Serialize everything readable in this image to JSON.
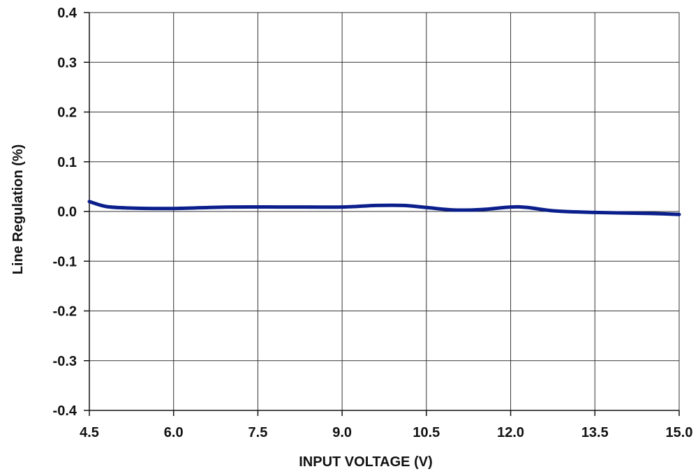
{
  "chart_data": {
    "type": "line",
    "xlabel": "INPUT VOLTAGE (V)",
    "ylabel": "Line Regulation (%)",
    "xlim": [
      4.5,
      15.0
    ],
    "ylim": [
      -0.4,
      0.4
    ],
    "x_ticks": [
      "4.5",
      "6.0",
      "7.5",
      "9.0",
      "10.5",
      "12.0",
      "13.5",
      "15.0"
    ],
    "y_ticks": [
      "0.4",
      "0.3",
      "0.2",
      "0.1",
      "0.0",
      "-0.1",
      "-0.2",
      "-0.3",
      "-0.4"
    ],
    "grid": true,
    "series": [
      {
        "color": "#0b1f8c",
        "x": [
          4.5,
          4.8,
          5.2,
          6.0,
          7.0,
          8.0,
          9.0,
          9.6,
          10.1,
          10.5,
          11.0,
          11.5,
          12.0,
          12.3,
          12.8,
          13.5,
          14.5,
          15.0
        ],
        "y": [
          0.02,
          0.01,
          0.007,
          0.006,
          0.009,
          0.009,
          0.009,
          0.012,
          0.012,
          0.008,
          0.003,
          0.004,
          0.009,
          0.008,
          0.001,
          -0.002,
          -0.004,
          -0.006
        ]
      }
    ]
  }
}
